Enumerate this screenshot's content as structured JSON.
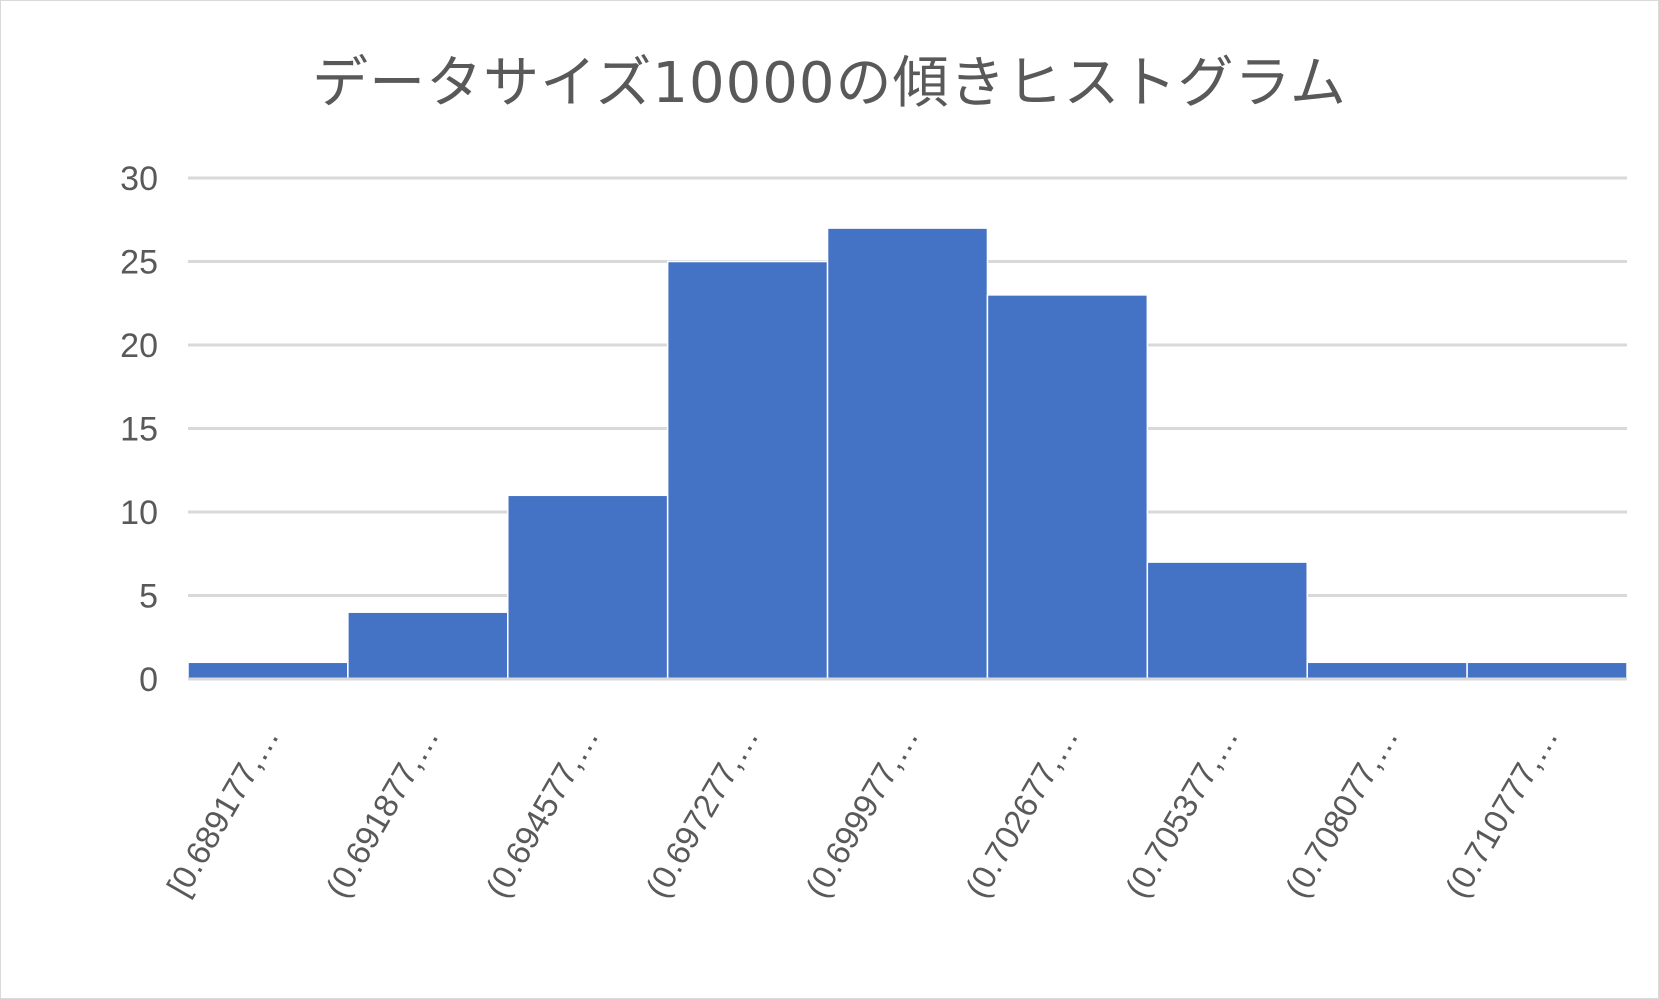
{
  "chart_data": {
    "type": "bar",
    "title": "データサイズ10000の傾きヒストグラム",
    "categories": [
      "[0.689177,…",
      "(0.691877,…",
      "(0.694577,…",
      "(0.697277,…",
      "(0.699977,…",
      "(0.702677,…",
      "(0.705377,…",
      "(0.708077,…",
      "(0.710777,…"
    ],
    "values": [
      1,
      4,
      11,
      25,
      27,
      23,
      7,
      1,
      1
    ],
    "ylim": [
      0,
      30
    ],
    "yticks": [
      "0",
      "5",
      "10",
      "15",
      "20",
      "25",
      "30"
    ],
    "grid": true,
    "bar_color": "#4472c4",
    "gridline_color": "#d9d9d9"
  }
}
